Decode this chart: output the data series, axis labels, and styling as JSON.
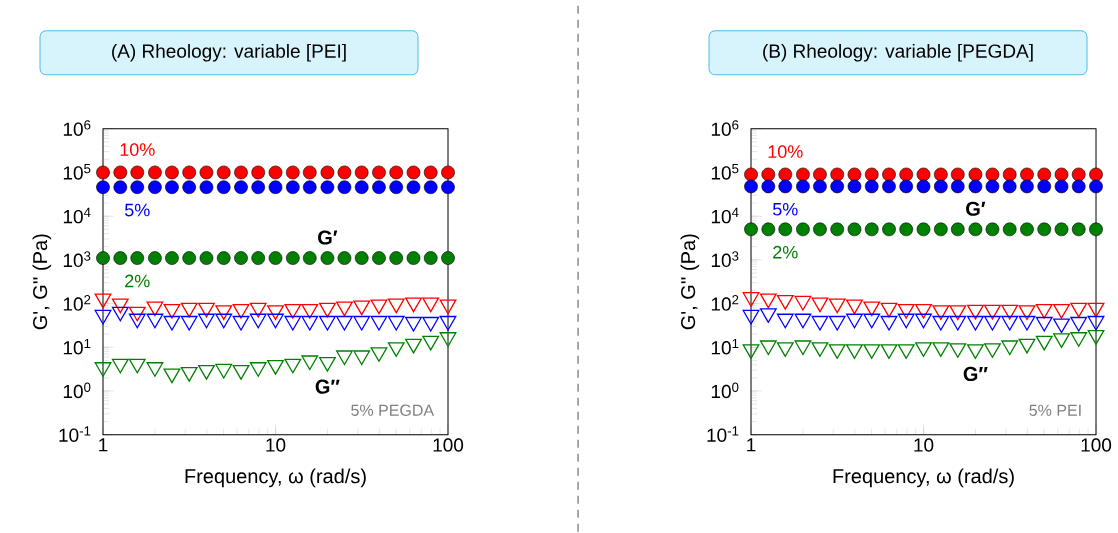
{
  "chart_data": [
    {
      "type": "scatter",
      "title": "(A) Rheology: variable [PEI]",
      "xlabel": "Frequency, ω (rad/s)",
      "ylabel": "G', G'' (Pa)",
      "log": "xy",
      "xlim": [
        1,
        100
      ],
      "ylim": [
        0.1,
        1000000
      ],
      "xticks": [
        1,
        10,
        100
      ],
      "yticks": [
        {
          "value": 0.1,
          "label": "10$^{-1}$"
        },
        {
          "value": 1,
          "label": "10$^{0}$"
        },
        {
          "value": 10,
          "label": "10$^{1}$"
        },
        {
          "value": 100,
          "label": "10$^{2}$"
        },
        {
          "value": 1000,
          "label": "10$^{3}$"
        },
        {
          "value": 10000,
          "label": "10$^{4}$"
        },
        {
          "value": 100000,
          "label": "10$^{5}$"
        },
        {
          "value": 1000000,
          "label": "10$^{6}$"
        }
      ],
      "x": [
        1,
        1.26,
        1.58,
        2,
        2.51,
        3.16,
        3.98,
        5.01,
        6.31,
        7.94,
        10,
        12.6,
        15.8,
        20,
        25.1,
        31.6,
        39.8,
        50.1,
        63.1,
        79.4,
        100
      ],
      "series": [
        {
          "name": "10%",
          "color": "#ff0000",
          "marker": "circle",
          "values": [
            100000,
            100000,
            100000,
            100000,
            100000,
            100000,
            100000,
            100000,
            100000,
            100000,
            100000,
            100000,
            100000,
            100000,
            100000,
            100000,
            100000,
            100000,
            100000,
            100000,
            100000
          ]
        },
        {
          "name": "5%",
          "color": "#0000ff",
          "marker": "circle",
          "values": [
            46000,
            46000,
            46000,
            46000,
            46000,
            46000,
            46000,
            46000,
            46000,
            46000,
            46000,
            46000,
            46000,
            46000,
            46000,
            46000,
            46000,
            46000,
            46000,
            46000,
            46000
          ]
        },
        {
          "name": "2%",
          "color": "#008000",
          "marker": "circle",
          "values": [
            1100,
            1100,
            1100,
            1100,
            1100,
            1100,
            1100,
            1100,
            1100,
            1100,
            1100,
            1100,
            1100,
            1100,
            1100,
            1100,
            1100,
            1100,
            1100,
            1100,
            1100
          ]
        },
        {
          "color": "#ff0000",
          "marker": "triangle",
          "values": [
            130,
            100,
            65,
            85,
            75,
            80,
            80,
            70,
            75,
            80,
            70,
            75,
            75,
            80,
            85,
            90,
            95,
            100,
            105,
            105,
            95
          ]
        },
        {
          "color": "#0000ff",
          "marker": "triangle",
          "values": [
            55,
            65,
            45,
            45,
            40,
            40,
            45,
            45,
            40,
            45,
            45,
            40,
            40,
            40,
            40,
            40,
            40,
            40,
            38,
            38,
            40
          ]
        },
        {
          "color": "#008000",
          "marker": "triangle",
          "values": [
            3.5,
            4.2,
            4.2,
            3.5,
            2.5,
            2.7,
            3,
            3.2,
            3,
            3.5,
            3.9,
            4.2,
            5,
            4.6,
            6.5,
            6.5,
            7.7,
            10,
            12,
            14,
            17
          ]
        }
      ],
      "annotations": [
        "G′",
        "G″",
        "5% PEGDA"
      ]
    },
    {
      "type": "scatter",
      "title": "(B) Rheology: variable [PEGDA]",
      "xlabel": "Frequency, ω (rad/s)",
      "ylabel": "G', G'' (Pa)",
      "log": "xy",
      "xlim": [
        1,
        100
      ],
      "ylim": [
        0.1,
        1000000
      ],
      "xticks": [
        1,
        10,
        100
      ],
      "yticks": [
        {
          "value": 0.1,
          "label": "10$^{-1}$"
        },
        {
          "value": 1,
          "label": "10$^{0}$"
        },
        {
          "value": 10,
          "label": "10$^{1}$"
        },
        {
          "value": 100,
          "label": "10$^{2}$"
        },
        {
          "value": 1000,
          "label": "10$^{3}$"
        },
        {
          "value": 10000,
          "label": "10$^{4}$"
        },
        {
          "value": 100000,
          "label": "10$^{5}$"
        },
        {
          "value": 1000000,
          "label": "10$^{6}$"
        }
      ],
      "x": [
        1,
        1.26,
        1.58,
        2,
        2.51,
        3.16,
        3.98,
        5.01,
        6.31,
        7.94,
        10,
        12.6,
        15.8,
        20,
        25.1,
        31.6,
        39.8,
        50.1,
        63.1,
        79.4,
        100
      ],
      "series": [
        {
          "name": "10%",
          "color": "#ff0000",
          "marker": "circle",
          "values": [
            90000,
            90000,
            90000,
            90000,
            90000,
            90000,
            90000,
            90000,
            90000,
            90000,
            90000,
            90000,
            90000,
            90000,
            90000,
            90000,
            90000,
            90000,
            90000,
            90000,
            90000
          ]
        },
        {
          "name": "5%",
          "color": "#0000ff",
          "marker": "circle",
          "values": [
            48000,
            48000,
            48000,
            48000,
            48000,
            48000,
            48000,
            48000,
            48000,
            48000,
            48000,
            48000,
            48000,
            48000,
            48000,
            48000,
            48000,
            48000,
            48000,
            48000,
            48000
          ]
        },
        {
          "name": "2%",
          "color": "#008000",
          "marker": "circle",
          "values": [
            5000,
            5000,
            5000,
            5000,
            5000,
            5000,
            5000,
            5000,
            5000,
            5000,
            5000,
            5000,
            5000,
            5000,
            5000,
            5000,
            5000,
            5000,
            5000,
            5000,
            5000
          ]
        },
        {
          "color": "#ff0000",
          "marker": "triangle",
          "values": [
            140,
            130,
            120,
            115,
            105,
            100,
            95,
            85,
            80,
            75,
            75,
            70,
            70,
            72,
            72,
            72,
            70,
            75,
            75,
            80,
            80
          ]
        },
        {
          "color": "#0000ff",
          "marker": "triangle",
          "values": [
            55,
            60,
            45,
            45,
            40,
            40,
            45,
            45,
            40,
            45,
            45,
            40,
            40,
            40,
            40,
            40,
            40,
            38,
            35,
            38,
            40
          ]
        },
        {
          "color": "#008000",
          "marker": "triangle",
          "values": [
            9,
            11,
            10,
            11,
            10,
            9,
            9,
            9,
            9,
            9,
            10,
            10,
            9.5,
            9,
            9.5,
            11,
            12,
            14,
            16,
            17,
            19
          ]
        }
      ],
      "annotations": [
        "G′",
        "G″",
        "5% PEI"
      ]
    }
  ]
}
